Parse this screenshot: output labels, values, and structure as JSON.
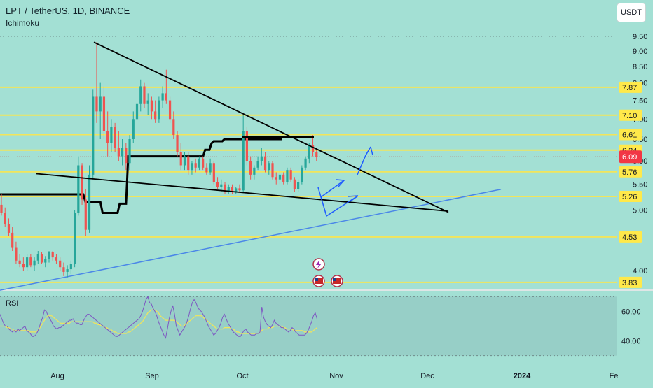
{
  "header": {
    "title": "LPT / TetherUS, 1D, BINANCE",
    "indicator": "Ichimoku",
    "currency_button": "USDT"
  },
  "colors": {
    "background": "#a3e0d4",
    "candle_up": "#26a69a",
    "candle_down": "#ef5350",
    "level_line": "#f2e55a",
    "trendline": "#000000",
    "support_trend": "#4a86e8",
    "projection_arrow": "#1e5bff",
    "rsi_line": "#7e57c2",
    "rsi_ma": "#f2e55a",
    "current_price_tag": "#f23645"
  },
  "chart_data": [
    {
      "type": "candlestick",
      "title": "LPT / TetherUS, 1D, BINANCE",
      "x_ticks": [
        "Aug",
        "Sep",
        "Oct",
        "Nov",
        "Dec",
        "2024",
        "Fe"
      ],
      "y_ticks": [
        4.0,
        5.0,
        5.5,
        6.0,
        6.5,
        7.0,
        7.5,
        8.0,
        8.5,
        9.0,
        9.5
      ],
      "y_scale": "log",
      "ylim": [
        3.75,
        9.8
      ],
      "current_price": 6.09,
      "price_labels": [
        {
          "value": 7.87,
          "label": "7.87"
        },
        {
          "value": 7.1,
          "label": "7.10"
        },
        {
          "value": 6.61,
          "label": "6.61"
        },
        {
          "value": 6.24,
          "label": "6.24"
        },
        {
          "value": 5.76,
          "label": "5.76"
        },
        {
          "value": 5.26,
          "label": "5.26"
        },
        {
          "value": 4.53,
          "label": "4.53"
        },
        {
          "value": 3.83,
          "label": "3.83"
        }
      ],
      "horizontal_levels": [
        7.87,
        7.1,
        6.61,
        6.24,
        5.76,
        5.26,
        4.53,
        3.83
      ],
      "candles": [
        {
          "o": 5.1,
          "h": 5.3,
          "l": 4.9,
          "c": 4.95
        },
        {
          "o": 4.95,
          "h": 5.05,
          "l": 4.7,
          "c": 4.75
        },
        {
          "o": 4.75,
          "h": 4.85,
          "l": 4.55,
          "c": 4.6
        },
        {
          "o": 4.6,
          "h": 4.7,
          "l": 4.3,
          "c": 4.35
        },
        {
          "o": 4.35,
          "h": 4.45,
          "l": 4.1,
          "c": 4.15
        },
        {
          "o": 4.15,
          "h": 4.25,
          "l": 4.05,
          "c": 4.1
        },
        {
          "o": 4.1,
          "h": 4.2,
          "l": 4.0,
          "c": 4.05
        },
        {
          "o": 4.05,
          "h": 4.25,
          "l": 4.0,
          "c": 4.2
        },
        {
          "o": 4.2,
          "h": 4.25,
          "l": 4.05,
          "c": 4.08
        },
        {
          "o": 4.08,
          "h": 4.2,
          "l": 4.0,
          "c": 4.15
        },
        {
          "o": 4.15,
          "h": 4.3,
          "l": 4.1,
          "c": 4.25
        },
        {
          "o": 4.25,
          "h": 4.28,
          "l": 4.1,
          "c": 4.12
        },
        {
          "o": 4.12,
          "h": 4.22,
          "l": 4.05,
          "c": 4.18
        },
        {
          "o": 4.18,
          "h": 4.3,
          "l": 4.12,
          "c": 4.28
        },
        {
          "o": 4.28,
          "h": 4.3,
          "l": 4.15,
          "c": 4.2
        },
        {
          "o": 4.2,
          "h": 4.25,
          "l": 4.1,
          "c": 4.15
        },
        {
          "o": 4.15,
          "h": 4.2,
          "l": 4.0,
          "c": 4.05
        },
        {
          "o": 4.05,
          "h": 4.12,
          "l": 3.92,
          "c": 3.98
        },
        {
          "o": 3.98,
          "h": 4.08,
          "l": 3.9,
          "c": 4.02
        },
        {
          "o": 4.02,
          "h": 4.15,
          "l": 3.95,
          "c": 4.1
        },
        {
          "o": 4.1,
          "h": 5.0,
          "l": 4.05,
          "c": 4.95
        },
        {
          "o": 4.95,
          "h": 6.1,
          "l": 4.9,
          "c": 5.9
        },
        {
          "o": 5.9,
          "h": 5.95,
          "l": 5.1,
          "c": 5.2
        },
        {
          "o": 5.2,
          "h": 5.4,
          "l": 4.55,
          "c": 4.65
        },
        {
          "o": 4.65,
          "h": 5.9,
          "l": 4.6,
          "c": 5.7
        },
        {
          "o": 5.7,
          "h": 7.8,
          "l": 5.6,
          "c": 7.6
        },
        {
          "o": 7.6,
          "h": 9.3,
          "l": 6.9,
          "c": 7.2
        },
        {
          "o": 7.2,
          "h": 8.0,
          "l": 6.5,
          "c": 7.6
        },
        {
          "o": 7.6,
          "h": 7.9,
          "l": 6.5,
          "c": 6.7
        },
        {
          "o": 6.7,
          "h": 7.2,
          "l": 6.1,
          "c": 6.4
        },
        {
          "o": 6.4,
          "h": 7.0,
          "l": 6.2,
          "c": 6.8
        },
        {
          "o": 6.8,
          "h": 6.9,
          "l": 6.2,
          "c": 6.3
        },
        {
          "o": 6.3,
          "h": 6.7,
          "l": 6.0,
          "c": 6.1
        },
        {
          "o": 6.1,
          "h": 6.5,
          "l": 5.9,
          "c": 6.3
        },
        {
          "o": 6.3,
          "h": 6.4,
          "l": 5.8,
          "c": 5.95
        },
        {
          "o": 5.95,
          "h": 6.6,
          "l": 5.8,
          "c": 6.5
        },
        {
          "o": 6.5,
          "h": 7.2,
          "l": 6.4,
          "c": 7.0
        },
        {
          "o": 7.0,
          "h": 7.6,
          "l": 6.8,
          "c": 7.4
        },
        {
          "o": 7.4,
          "h": 8.1,
          "l": 7.2,
          "c": 7.9
        },
        {
          "o": 7.9,
          "h": 8.0,
          "l": 7.3,
          "c": 7.4
        },
        {
          "o": 7.4,
          "h": 7.7,
          "l": 7.1,
          "c": 7.5
        },
        {
          "o": 7.5,
          "h": 7.6,
          "l": 7.0,
          "c": 7.2
        },
        {
          "o": 7.2,
          "h": 7.5,
          "l": 6.9,
          "c": 7.0
        },
        {
          "o": 7.0,
          "h": 7.6,
          "l": 6.9,
          "c": 7.5
        },
        {
          "o": 7.5,
          "h": 7.9,
          "l": 7.3,
          "c": 7.7
        },
        {
          "o": 7.7,
          "h": 8.4,
          "l": 7.4,
          "c": 7.5
        },
        {
          "o": 7.5,
          "h": 7.6,
          "l": 6.9,
          "c": 7.0
        },
        {
          "o": 7.0,
          "h": 7.2,
          "l": 6.5,
          "c": 6.6
        },
        {
          "o": 6.6,
          "h": 6.7,
          "l": 6.1,
          "c": 6.2
        },
        {
          "o": 6.2,
          "h": 6.4,
          "l": 5.8,
          "c": 5.9
        },
        {
          "o": 5.9,
          "h": 6.2,
          "l": 5.8,
          "c": 6.1
        },
        {
          "o": 6.1,
          "h": 6.2,
          "l": 5.7,
          "c": 5.8
        },
        {
          "o": 5.8,
          "h": 6.0,
          "l": 5.7,
          "c": 5.95
        },
        {
          "o": 5.95,
          "h": 6.05,
          "l": 5.75,
          "c": 5.85
        },
        {
          "o": 5.85,
          "h": 6.1,
          "l": 5.8,
          "c": 6.05
        },
        {
          "o": 6.05,
          "h": 6.1,
          "l": 5.8,
          "c": 5.85
        },
        {
          "o": 5.85,
          "h": 5.95,
          "l": 5.7,
          "c": 5.75
        },
        {
          "o": 5.75,
          "h": 6.05,
          "l": 5.7,
          "c": 5.95
        },
        {
          "o": 5.95,
          "h": 6.0,
          "l": 5.5,
          "c": 5.55
        },
        {
          "o": 5.55,
          "h": 5.65,
          "l": 5.4,
          "c": 5.45
        },
        {
          "o": 5.45,
          "h": 5.6,
          "l": 5.35,
          "c": 5.5
        },
        {
          "o": 5.5,
          "h": 5.55,
          "l": 5.3,
          "c": 5.35
        },
        {
          "o": 5.35,
          "h": 5.5,
          "l": 5.3,
          "c": 5.45
        },
        {
          "o": 5.45,
          "h": 5.5,
          "l": 5.3,
          "c": 5.35
        },
        {
          "o": 5.35,
          "h": 5.45,
          "l": 5.3,
          "c": 5.42
        },
        {
          "o": 5.42,
          "h": 5.5,
          "l": 5.35,
          "c": 5.38
        },
        {
          "o": 5.38,
          "h": 7.1,
          "l": 5.35,
          "c": 6.7
        },
        {
          "o": 6.7,
          "h": 6.8,
          "l": 5.9,
          "c": 6.0
        },
        {
          "o": 6.0,
          "h": 6.1,
          "l": 5.6,
          "c": 5.7
        },
        {
          "o": 5.7,
          "h": 5.9,
          "l": 5.6,
          "c": 5.85
        },
        {
          "o": 5.85,
          "h": 6.1,
          "l": 5.8,
          "c": 6.0
        },
        {
          "o": 6.0,
          "h": 6.3,
          "l": 5.9,
          "c": 6.1
        },
        {
          "o": 6.1,
          "h": 6.2,
          "l": 5.75,
          "c": 5.8
        },
        {
          "o": 5.8,
          "h": 6.0,
          "l": 5.7,
          "c": 5.95
        },
        {
          "o": 5.95,
          "h": 6.0,
          "l": 5.6,
          "c": 5.65
        },
        {
          "o": 5.65,
          "h": 5.75,
          "l": 5.5,
          "c": 5.6
        },
        {
          "o": 5.6,
          "h": 5.8,
          "l": 5.5,
          "c": 5.7
        },
        {
          "o": 5.7,
          "h": 5.75,
          "l": 5.5,
          "c": 5.55
        },
        {
          "o": 5.55,
          "h": 5.85,
          "l": 5.5,
          "c": 5.8
        },
        {
          "o": 5.8,
          "h": 5.85,
          "l": 5.55,
          "c": 5.6
        },
        {
          "o": 5.6,
          "h": 5.65,
          "l": 5.35,
          "c": 5.4
        },
        {
          "o": 5.4,
          "h": 5.6,
          "l": 5.35,
          "c": 5.55
        },
        {
          "o": 5.55,
          "h": 5.9,
          "l": 5.5,
          "c": 5.85
        },
        {
          "o": 5.85,
          "h": 6.1,
          "l": 5.8,
          "c": 6.05
        },
        {
          "o": 6.05,
          "h": 6.4,
          "l": 5.95,
          "c": 6.35
        },
        {
          "o": 6.35,
          "h": 6.6,
          "l": 6.1,
          "c": 6.2
        },
        {
          "o": 6.2,
          "h": 6.3,
          "l": 6.0,
          "c": 6.09
        }
      ],
      "ichimoku_line": [
        5.3,
        5.3,
        5.3,
        5.3,
        5.3,
        5.3,
        5.3,
        5.3,
        5.3,
        5.3,
        5.3,
        5.3,
        5.3,
        5.3,
        5.3,
        5.3,
        5.3,
        5.3,
        5.3,
        5.3,
        5.3,
        5.3,
        5.3,
        5.3,
        5.3,
        5.3,
        5.3,
        5.3,
        5.3,
        5.3,
        5.3,
        5.3,
        5.3,
        5.3,
        5.3,
        5.3,
        5.3,
        5.3,
        5.3,
        5.3,
        5.15,
        5.15,
        5.15,
        5.15,
        5.15,
        5.15,
        5.15,
        5.15,
        4.95,
        4.95,
        4.95,
        4.95,
        4.95,
        4.95,
        4.95,
        4.95,
        5.12,
        5.12,
        5.12,
        5.12,
        6.1,
        6.1,
        6.1,
        6.1,
        6.1,
        6.1,
        6.1,
        6.1,
        6.1,
        6.1,
        6.1,
        6.1,
        6.1,
        6.1,
        6.1,
        6.1,
        6.1,
        6.1,
        6.1,
        6.1,
        6.1,
        6.1,
        6.1,
        6.1,
        6.1,
        6.1,
        6.1,
        6.1,
        6.1,
        6.1,
        6.1,
        6.1,
        6.1,
        6.1,
        6.1,
        6.1,
        6.25,
        6.25,
        6.25,
        6.4,
        6.45,
        6.45,
        6.45,
        6.45,
        6.45,
        6.5,
        6.5,
        6.5,
        6.5,
        6.5,
        6.5,
        6.5,
        6.5,
        6.5,
        6.5,
        6.5,
        6.5,
        6.5,
        6.5,
        6.5,
        6.5,
        6.5,
        6.5,
        6.5,
        6.5,
        6.5,
        6.5,
        6.5,
        6.5,
        6.5,
        6.5,
        6.5,
        6.5
      ],
      "trendlines": [
        {
          "name": "resistance",
          "from": [
            "Aug 12",
            9.3
          ],
          "to": [
            "Dec 5",
            4.95
          ]
        },
        {
          "name": "support",
          "from": [
            "Jul 15",
            5.7
          ],
          "to": [
            "Dec 5",
            4.95
          ]
        },
        {
          "name": "rising-support",
          "from": [
            "Jul 10",
            3.7
          ],
          "to": [
            "Dec 15",
            5.4
          ]
        },
        {
          "name": "box-top",
          "from": [
            "Oct 1",
            6.55
          ],
          "to": [
            "Oct 22",
            6.55
          ]
        }
      ],
      "markers": [
        {
          "icon": "lightning-icon",
          "position": "above-bars"
        },
        {
          "icon": "us-flag-icon",
          "position": "above-bars"
        },
        {
          "icon": "us-flag-icon",
          "position": "above-bars"
        }
      ]
    },
    {
      "type": "line",
      "title": "RSI",
      "y_ticks": [
        40.0,
        60.0
      ],
      "y_tick_labels": [
        "40.00",
        "60.00"
      ],
      "ylim": [
        27,
        73
      ],
      "bands": [
        30,
        50,
        70
      ],
      "series": [
        {
          "values": [
            58,
            55,
            52,
            50,
            50,
            48,
            47,
            46,
            47,
            46,
            48,
            47,
            48,
            49,
            50,
            47,
            46,
            45,
            43,
            43,
            44,
            46,
            49,
            53,
            56,
            61,
            60,
            57,
            55,
            53,
            50,
            49,
            48,
            49,
            49,
            50,
            51,
            52,
            53,
            54,
            54,
            55,
            53,
            52,
            52,
            51,
            51,
            54,
            56,
            58,
            58,
            57,
            56,
            55,
            54,
            53,
            52,
            51,
            50,
            49,
            48,
            47,
            46,
            45,
            44,
            43,
            43,
            44,
            45,
            46,
            47,
            48,
            49,
            50,
            51,
            52,
            53,
            54,
            55,
            57,
            60,
            64,
            68,
            70,
            66,
            65,
            62,
            60,
            57,
            53,
            50,
            47,
            44,
            42,
            48,
            55,
            60,
            64,
            58,
            50,
            47,
            44,
            46,
            48,
            50,
            53,
            57,
            62,
            66,
            68,
            66,
            63,
            61,
            60,
            58,
            56,
            53,
            50,
            48,
            46,
            44,
            45,
            47,
            49,
            52,
            56,
            58,
            55,
            52,
            50,
            48,
            46,
            45,
            44,
            43,
            43,
            45,
            47,
            48,
            46,
            45,
            44,
            44,
            44,
            45,
            45,
            46,
            63,
            56,
            53,
            51,
            50,
            49,
            51,
            54,
            52,
            51,
            50,
            49,
            49,
            48,
            47,
            46,
            47,
            49,
            48,
            46,
            45,
            44,
            44,
            44,
            44,
            45,
            47,
            50,
            53,
            57,
            59,
            55
          ]
        },
        {
          "values": [
            50,
            50,
            50,
            50,
            49,
            49,
            48,
            48,
            47,
            47,
            47,
            47,
            47,
            47,
            47,
            47,
            47,
            46,
            46,
            46,
            46,
            47,
            48,
            50,
            52,
            54,
            56,
            57,
            57,
            57,
            56,
            55,
            54,
            53,
            52,
            52,
            52,
            52,
            52,
            52,
            53,
            53,
            53,
            53,
            53,
            53,
            53,
            53,
            53,
            53,
            53,
            53,
            53,
            52,
            52,
            51,
            51,
            50,
            50,
            49,
            49,
            48,
            48,
            47,
            46,
            46,
            45,
            45,
            45,
            45,
            45,
            45,
            46,
            46,
            47,
            48,
            49,
            50,
            51,
            52,
            53,
            55,
            57,
            59,
            60,
            61,
            61,
            61,
            60,
            59,
            57,
            56,
            55,
            54,
            54,
            54,
            54,
            54,
            54,
            53,
            52,
            51,
            50,
            50,
            51,
            52,
            53,
            54,
            55,
            56,
            57,
            57,
            57,
            57,
            56,
            55,
            54,
            53,
            52,
            51,
            50,
            49,
            48,
            48,
            48,
            48,
            49,
            49,
            49,
            49,
            48,
            48,
            47,
            46,
            46,
            45,
            45,
            45,
            45,
            45,
            45,
            45,
            45,
            45,
            45,
            45,
            46,
            47,
            48,
            48,
            48,
            49,
            49,
            49,
            50,
            50,
            50,
            50,
            50,
            49,
            49,
            48,
            48,
            48,
            48,
            47,
            47,
            47,
            47,
            47,
            47,
            46,
            46,
            46,
            46,
            46,
            47,
            48,
            49
          ]
        }
      ]
    }
  ]
}
